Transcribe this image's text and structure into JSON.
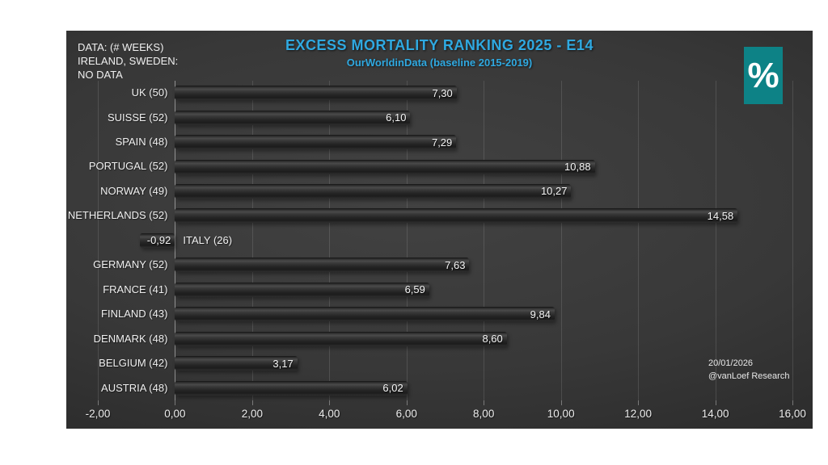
{
  "header": {
    "title": "EXCESS MORTALITY RANKING 2025 - E14",
    "subtitle": "OurWorldinData (baseline 2015-2019)",
    "title_color": "#2fa9e1"
  },
  "annotations": {
    "note_lines": [
      "DATA: (# WEEKS)",
      "IRELAND, SWEDEN:",
      "NO DATA"
    ],
    "date": "20/01/2026",
    "credit": "@vanLoef Research",
    "percent_glyph": "%",
    "percent_box_color": "#0d8286"
  },
  "chart_data": {
    "type": "bar",
    "orientation": "horizontal",
    "title": "EXCESS MORTALITY RANKING 2025 - E14",
    "subtitle": "OurWorldinData (baseline 2015-2019)",
    "categories": [
      "UK (50)",
      "SUISSE (52)",
      "SPAIN (48)",
      "PORTUGAL (52)",
      "NORWAY (49)",
      "NETHERLANDS (52)",
      "ITALY (26)",
      "GERMANY (52)",
      "FRANCE (41)",
      "FINLAND (43)",
      "DENMARK (48)",
      "BELGIUM (42)",
      "AUSTRIA (48)"
    ],
    "values": [
      7.3,
      6.1,
      7.29,
      10.88,
      10.27,
      14.58,
      -0.92,
      7.63,
      6.59,
      9.84,
      8.6,
      3.17,
      6.02
    ],
    "value_labels": [
      "7,30",
      "6,10",
      "7,29",
      "10,88",
      "10,27",
      "14,58",
      "-0,92",
      "7,63",
      "6,59",
      "9,84",
      "8,60",
      "3,17",
      "6,02"
    ],
    "x_tick_values": [
      -2,
      0,
      2,
      4,
      6,
      8,
      10,
      12,
      14,
      16
    ],
    "x_tick_labels": [
      "-2,00",
      "0,00",
      "2,00",
      "4,00",
      "6,00",
      "8,00",
      "10,00",
      "12,00",
      "14,00",
      "16,00"
    ],
    "xlim": [
      -2,
      16
    ],
    "grid": true,
    "legend": false,
    "bar_color": "#333333",
    "background_color": "#3a3a3a",
    "label_color": "#f0f0f0"
  }
}
